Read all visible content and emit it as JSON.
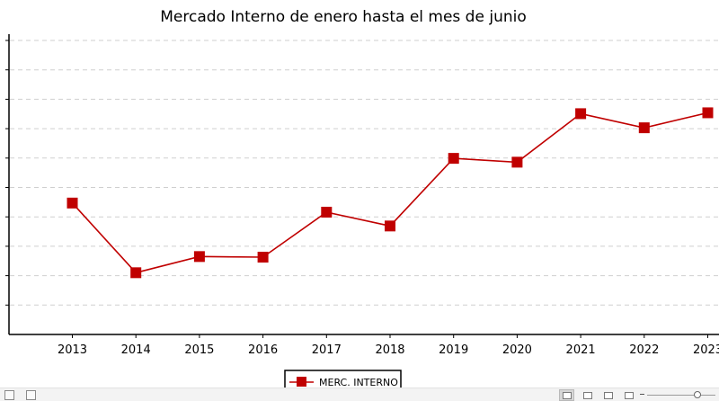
{
  "chart_data": {
    "type": "line",
    "title": "Mercado Interno de enero hasta el mes de junio",
    "xlabel": "",
    "ylabel": "",
    "x": [
      "2013",
      "2014",
      "2015",
      "2016",
      "2017",
      "2018",
      "2019",
      "2020",
      "2021",
      "2022",
      "2023"
    ],
    "series": [
      {
        "name": "MERC. INTERNO",
        "color": "#c00000",
        "marker": "square",
        "values": [
          44.7,
          21.0,
          26.5,
          26.3,
          41.6,
          36.9,
          59.9,
          58.6,
          75.1,
          70.3,
          75.4
        ]
      }
    ],
    "ylim": [
      0,
      100
    ],
    "y_tick_labels_visible": false,
    "grid": "horizontal-dashed",
    "legend": "bottom-center"
  }
}
